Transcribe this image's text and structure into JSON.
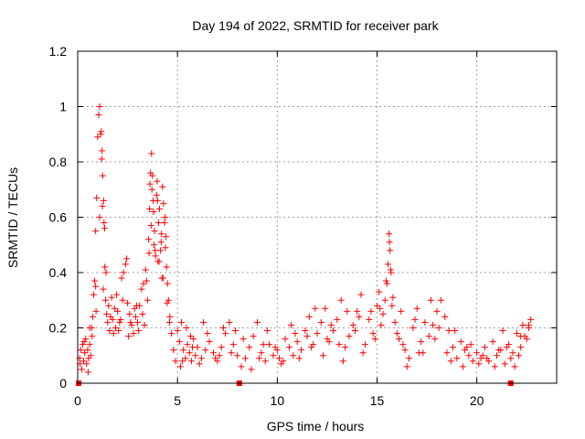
{
  "chart_data": {
    "type": "scatter",
    "title": "Day 194 of 2022, SRMTID for receiver park",
    "xlabel": "GPS time / hours",
    "ylabel": "SRMTID / TECUs",
    "xlim": [
      0,
      24
    ],
    "ylim": [
      0,
      1.2
    ],
    "grid": true,
    "x_ticks": [
      0,
      5,
      10,
      15,
      20
    ],
    "x_tick_labels": [
      "0",
      "5",
      "10",
      "15",
      "20"
    ],
    "y_ticks": [
      0,
      0.2,
      0.4,
      0.6,
      0.8,
      1.0,
      1.2
    ],
    "y_tick_labels": [
      "0",
      "0.2",
      "0.4",
      "0.6",
      "0.8",
      "1",
      "1.2"
    ],
    "marker_color": "#ff0000",
    "gap_markers_x": [
      0.05,
      8.1,
      21.7
    ],
    "series": [
      {
        "name": "SRMTID",
        "marker": "+",
        "x": [
          0.1,
          0.15,
          0.2,
          0.25,
          0.3,
          0.35,
          0.4,
          0.45,
          0.5,
          0.55,
          0.6,
          0.65,
          0.7,
          0.75,
          0.8,
          0.85,
          0.9,
          0.95,
          1.0,
          1.05,
          1.1,
          1.15,
          1.2,
          1.25,
          1.3,
          1.35,
          1.4,
          1.45,
          1.5,
          1.55,
          1.6,
          1.65,
          1.7,
          1.75,
          1.8,
          1.85,
          1.9,
          1.95,
          2.0,
          2.1,
          2.2,
          2.3,
          2.4,
          2.5,
          2.6,
          2.7,
          2.8,
          2.9,
          3.0,
          3.1,
          3.2,
          3.3,
          3.4,
          3.5,
          3.55,
          3.6,
          3.65,
          3.7,
          3.75,
          3.8,
          3.85,
          3.9,
          3.95,
          4.0,
          4.05,
          4.1,
          4.15,
          4.2,
          4.25,
          4.3,
          4.35,
          4.4,
          4.45,
          4.5,
          4.55,
          4.6,
          4.7,
          4.8,
          4.9,
          5.0,
          5.1,
          5.2,
          5.3,
          5.4,
          5.5,
          5.6,
          5.7,
          5.8,
          5.9,
          6.0,
          6.2,
          6.4,
          6.6,
          6.8,
          7.0,
          7.2,
          7.4,
          7.6,
          7.8,
          8.0,
          8.2,
          8.4,
          8.6,
          8.8,
          9.0,
          9.2,
          9.4,
          9.6,
          9.8,
          10.0,
          10.2,
          10.4,
          10.6,
          10.8,
          11.0,
          11.2,
          11.4,
          11.6,
          11.8,
          12.0,
          12.2,
          12.4,
          12.6,
          12.8,
          13.0,
          13.2,
          13.4,
          13.6,
          13.8,
          14.0,
          14.2,
          14.4,
          14.6,
          14.8,
          15.0,
          15.1,
          15.2,
          15.3,
          15.4,
          15.5,
          15.6,
          15.65,
          15.7,
          15.8,
          15.9,
          16.0,
          16.2,
          16.4,
          16.6,
          16.8,
          17.0,
          17.2,
          17.4,
          17.6,
          17.8,
          18.0,
          18.2,
          18.4,
          18.6,
          18.8,
          19.0,
          19.2,
          19.4,
          19.6,
          19.8,
          20.0,
          20.2,
          20.4,
          20.6,
          20.8,
          21.0,
          21.2,
          21.4,
          21.6,
          21.8,
          22.0,
          22.2,
          22.4,
          22.6,
          22.7,
          0.12,
          0.32,
          0.52,
          0.72,
          0.92,
          1.22,
          1.32,
          1.42,
          2.05,
          2.25,
          2.45,
          2.65,
          2.85,
          3.05,
          3.25,
          3.45,
          3.62,
          3.72,
          3.82,
          4.02,
          4.22,
          4.42,
          4.62,
          5.15,
          5.45,
          5.75,
          6.1,
          6.5,
          6.9,
          7.3,
          7.7,
          8.3,
          8.7,
          9.1,
          9.5,
          9.9,
          10.3,
          10.7,
          11.1,
          11.5,
          11.9,
          12.3,
          12.7,
          13.1,
          13.5,
          13.9,
          14.3,
          14.7,
          15.15,
          15.45,
          15.75,
          16.1,
          16.5,
          16.9,
          17.3,
          17.7,
          18.1,
          18.5,
          18.9,
          19.3,
          19.7,
          20.1,
          20.5,
          20.9,
          21.3,
          21.5,
          21.9,
          22.1,
          22.3,
          22.5,
          1.18,
          1.24,
          1.28,
          1.36,
          3.58,
          3.68,
          3.78,
          3.88,
          3.98,
          4.08,
          4.18,
          4.28,
          4.38,
          4.48,
          15.55,
          15.62,
          15.68,
          0.6,
          0.9,
          1.1,
          2.15,
          2.55,
          2.95,
          3.35,
          5.25,
          5.65,
          6.3,
          7.1,
          7.9,
          9.3,
          10.1,
          10.9,
          11.7,
          12.5,
          13.3,
          14.1,
          14.9,
          16.3,
          17.1,
          17.9,
          18.7,
          19.5,
          20.3,
          21.1,
          21.7,
          22.2,
          22.6
        ],
        "y": [
          0.09,
          0.12,
          0.05,
          0.14,
          0.08,
          0.11,
          0.16,
          0.07,
          0.12,
          0.09,
          0.14,
          0.1,
          0.2,
          0.24,
          0.32,
          0.37,
          0.55,
          0.67,
          0.89,
          0.97,
          1.0,
          0.9,
          0.81,
          0.75,
          0.66,
          0.56,
          0.3,
          0.25,
          0.22,
          0.28,
          0.19,
          0.24,
          0.31,
          0.23,
          0.18,
          0.27,
          0.2,
          0.32,
          0.26,
          0.22,
          0.38,
          0.4,
          0.43,
          0.29,
          0.25,
          0.21,
          0.18,
          0.24,
          0.22,
          0.28,
          0.34,
          0.36,
          0.41,
          0.3,
          0.52,
          0.63,
          0.76,
          0.83,
          0.75,
          0.62,
          0.55,
          0.46,
          0.68,
          0.66,
          0.58,
          0.63,
          0.48,
          0.54,
          0.71,
          0.65,
          0.58,
          0.49,
          0.42,
          0.36,
          0.3,
          0.22,
          0.18,
          0.12,
          0.08,
          0.19,
          0.15,
          0.22,
          0.12,
          0.09,
          0.14,
          0.11,
          0.08,
          0.16,
          0.1,
          0.13,
          0.09,
          0.12,
          0.15,
          0.11,
          0.08,
          0.13,
          0.18,
          0.22,
          0.14,
          0.1,
          0.06,
          0.09,
          0.13,
          0.17,
          0.22,
          0.11,
          0.08,
          0.14,
          0.1,
          0.12,
          0.07,
          0.16,
          0.13,
          0.1,
          0.15,
          0.12,
          0.19,
          0.24,
          0.14,
          0.18,
          0.22,
          0.27,
          0.15,
          0.19,
          0.23,
          0.3,
          0.13,
          0.17,
          0.21,
          0.26,
          0.32,
          0.14,
          0.23,
          0.18,
          0.28,
          0.33,
          0.21,
          0.25,
          0.3,
          0.36,
          0.54,
          0.48,
          0.4,
          0.31,
          0.22,
          0.18,
          0.26,
          0.12,
          0.09,
          0.2,
          0.27,
          0.15,
          0.22,
          0.17,
          0.21,
          0.26,
          0.3,
          0.24,
          0.19,
          0.13,
          0.09,
          0.15,
          0.12,
          0.1,
          0.08,
          0.11,
          0.09,
          0.13,
          0.08,
          0.15,
          0.1,
          0.12,
          0.07,
          0.14,
          0.11,
          0.18,
          0.13,
          0.17,
          0.21,
          0.23,
          0.07,
          0.15,
          0.04,
          0.17,
          0.26,
          0.84,
          0.58,
          0.4,
          0.19,
          0.3,
          0.45,
          0.22,
          0.27,
          0.19,
          0.25,
          0.37,
          0.72,
          0.7,
          0.5,
          0.44,
          0.38,
          0.53,
          0.24,
          0.06,
          0.2,
          0.13,
          0.07,
          0.18,
          0.09,
          0.2,
          0.11,
          0.16,
          0.05,
          0.09,
          0.19,
          0.13,
          0.08,
          0.21,
          0.09,
          0.17,
          0.27,
          0.1,
          0.21,
          0.14,
          0.26,
          0.19,
          0.11,
          0.26,
          0.27,
          0.37,
          0.28,
          0.16,
          0.06,
          0.23,
          0.11,
          0.3,
          0.2,
          0.11,
          0.19,
          0.06,
          0.14,
          0.07,
          0.09,
          0.06,
          0.19,
          0.13,
          0.06,
          0.1,
          0.21,
          0.16,
          0.91,
          0.64,
          0.34,
          0.42,
          0.47,
          0.57,
          0.66,
          0.48,
          0.73,
          0.44,
          0.51,
          0.38,
          0.6,
          0.29,
          0.43,
          0.51,
          0.41,
          0.2,
          0.35,
          0.6,
          0.23,
          0.17,
          0.28,
          0.21,
          0.08,
          0.17,
          0.22,
          0.1,
          0.19,
          0.14,
          0.09,
          0.18,
          0.13,
          0.16,
          0.08,
          0.24,
          0.16,
          0.14,
          0.11,
          0.16,
          0.08,
          0.13,
          0.1,
          0.12,
          0.09,
          0.17,
          0.2
        ]
      }
    ]
  }
}
